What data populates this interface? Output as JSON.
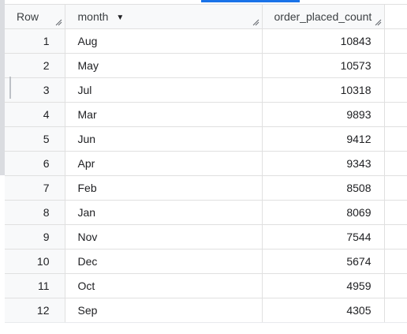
{
  "table": {
    "columns": {
      "row": "Row",
      "month": "month",
      "count": "order_placed_count"
    },
    "rows": [
      {
        "row": "1",
        "month": "Aug",
        "count": "10843"
      },
      {
        "row": "2",
        "month": "May",
        "count": "10573"
      },
      {
        "row": "3",
        "month": "Jul",
        "count": "10318"
      },
      {
        "row": "4",
        "month": "Mar",
        "count": "9893"
      },
      {
        "row": "5",
        "month": "Jun",
        "count": "9412"
      },
      {
        "row": "6",
        "month": "Apr",
        "count": "9343"
      },
      {
        "row": "7",
        "month": "Feb",
        "count": "8508"
      },
      {
        "row": "8",
        "month": "Jan",
        "count": "8069"
      },
      {
        "row": "9",
        "month": "Nov",
        "count": "7544"
      },
      {
        "row": "10",
        "month": "Dec",
        "count": "5674"
      },
      {
        "row": "11",
        "month": "Oct",
        "count": "4959"
      },
      {
        "row": "12",
        "month": "Sep",
        "count": "4305"
      }
    ]
  },
  "icons": {
    "sort": "caret-down-icon",
    "resize": "column-resize-icon"
  },
  "colors": {
    "header_bg": "#f8f9fa",
    "grid_line": "#e0e0e0",
    "tab_accent": "#1a73e8"
  }
}
